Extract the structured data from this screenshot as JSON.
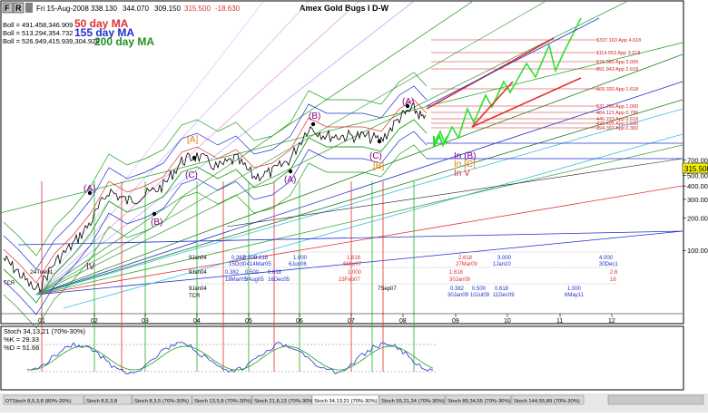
{
  "toolbar": {
    "buttons": [
      "F",
      "R"
    ],
    "date": "Fri 15-Aug-2008",
    "open": "338.130",
    "high": "344.070",
    "low": "309.150",
    "close": "315.500",
    "change": "-18.630"
  },
  "title": "Amex Gold Bugs I D-W",
  "legend": [
    {
      "text": "Boll = 491.458,346.909",
      "ma": "50 day MA",
      "ma_color": "#e03030"
    },
    {
      "text": "Boll = 513.294,354.732",
      "ma": "155 day MA",
      "ma_color": "#2030d0"
    },
    {
      "text": "Boll = 526.949,415.939,304.928",
      "ma": "200 day MA",
      "ma_color": "#209020"
    }
  ],
  "price_label": "315.500",
  "y_ticks": [
    {
      "label": "700.000",
      "value": 700
    },
    {
      "label": "600.000",
      "value": 600
    },
    {
      "label": "500.000",
      "value": 500
    },
    {
      "label": "400.000",
      "value": 400
    },
    {
      "label": "300.000",
      "value": 300
    },
    {
      "label": "200.000",
      "value": 200
    },
    {
      "label": "100.000",
      "value": 100
    }
  ],
  "x_ticks": [
    "01",
    "02",
    "03",
    "04",
    "05",
    "06",
    "07",
    "08",
    "09",
    "10",
    "11",
    "12"
  ],
  "fib_levels": [
    {
      "label": "1337.163 App 4.618",
      "color": "#d02020"
    },
    {
      "label": "1114.553 App 3.618",
      "color": "#d02020"
    },
    {
      "label": "976.580 App 3.000",
      "color": "#d02020"
    },
    {
      "label": "891.943 App 2.618",
      "color": "#d02020"
    },
    {
      "label": "669.333 App 1.618",
      "color": "#d02020"
    },
    {
      "label": "531.760 App 1.000",
      "color": "#d02020"
    },
    {
      "label": "484.121 App 0.786",
      "color": "#d02020"
    },
    {
      "label": "446.223 App 0.618",
      "color": "#d02020"
    },
    {
      "label": "420.495 App 0.500",
      "color": "#d02020"
    },
    {
      "label": "394.397 App 0.382",
      "color": "#d02020"
    }
  ],
  "wave_labels": {
    "A1": "(A)",
    "B1": "(B)",
    "C1": "(C)",
    "Abr": "[A]",
    "A2": "(A)",
    "B2": "(B)",
    "C2": "(C)",
    "Bbr": "[B]",
    "A3": "(A)",
    "IV": "IV",
    "TCR": "24Tue01",
    "inB": "In (B)",
    "inC": "In [C]",
    "inV": "In V"
  },
  "time_rows": {
    "r1": [
      "9Jan04",
      "0.382",
      "0.500",
      "0.618",
      "1.000",
      "1.618",
      "2.618",
      "3.000",
      "4.000"
    ],
    "r1b": [
      "15Oct04",
      "14Mar05",
      "6Jun06",
      "6Mar07",
      "27Mar09",
      "1Jan10",
      "30Dec1"
    ],
    "r2": [
      "9Jan04",
      "0.382",
      "0.500",
      "0.618",
      "1.000",
      "1.618",
      "2.6"
    ],
    "r2b": [
      "18Mar05",
      "9Aug05",
      "16Dec05",
      "23Feb07",
      "30Jan09",
      "16"
    ],
    "r3": [
      "9Jan04",
      "TCR",
      "7Sep07",
      "0.382",
      "0.500",
      "0.618",
      "1.000"
    ],
    "r3b": [
      "30Jan09",
      "10Jul09",
      "11Dec09",
      "6May11"
    ],
    "tcr": "TCR"
  },
  "stoch": {
    "title": "Stoch 34,13,21 (70%-30%)",
    "k": "%K = 29.33",
    "d": "%D = 51.66"
  },
  "tabs": [
    "DTStoch 8,5,3,8 (80%-20%)",
    "Stoch 8,5,3,8",
    "Stoch 8,3,5 (70%-30%)",
    "Stoch 13,5,8 (70%-30%)",
    "Stoch 21,8,13 (70%-30%)",
    "Stoch 34,13,21 (70%-30%)",
    "Stoch 55,21,34 (70%-30%)",
    "Stoch 89,34,55 (70%-30%)",
    "Stoch 144,55,89 (70%-30%)"
  ],
  "colors": {
    "red": "#e03030",
    "blue": "#2030d0",
    "green": "#20b020",
    "purple": "#800080",
    "orange": "#e08000",
    "cyan": "#40c0e0"
  }
}
